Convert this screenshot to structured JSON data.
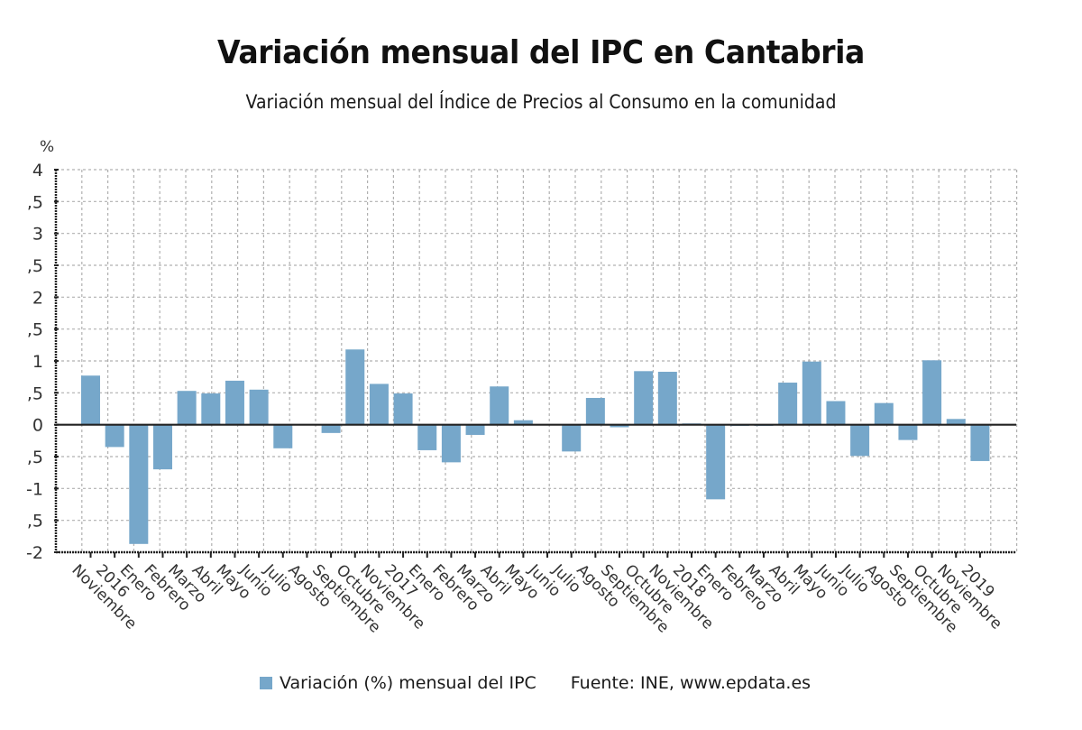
{
  "header": {
    "title": "Variación mensual del IPC en Cantabria",
    "subtitle": "Variación mensual del Índice de Precios al Consumo en la comunidad"
  },
  "legend": {
    "series_label": "Variación (%) mensual del IPC",
    "source": "Fuente: INE, www.epdata.es",
    "swatch_color": "#76a7ca"
  },
  "colors": {
    "bar": "#76a7ca",
    "zero_line": "#222222",
    "grid": "#b0b0b0",
    "axis": "#222222"
  },
  "chart_data": {
    "type": "bar",
    "title": "Variación mensual del IPC en Cantabria",
    "subtitle": "Variación mensual del Índice de Precios al Consumo en la comunidad",
    "xlabel": "",
    "ylabel": "%",
    "ylim": [
      -2,
      4
    ],
    "yticks": [
      4,
      3.5,
      3,
      2.5,
      2,
      1.5,
      1,
      0.5,
      0,
      -0.5,
      -1,
      -1.5,
      -2
    ],
    "ytick_labels": [
      "4",
      ",5",
      "3",
      ",5",
      "2",
      ",5",
      "1",
      ",5",
      "0",
      ",5",
      "-1",
      ",5",
      "-2"
    ],
    "grid": true,
    "legend_position": "bottom",
    "categories": [
      "Noviembre",
      "2016",
      "Enero",
      "Febrero",
      "Marzo",
      "Abril",
      "Mayo",
      "Junio",
      "Julio",
      "Agosto",
      "Septiembre",
      "Octubre",
      "Noviembre",
      "2017",
      "Enero",
      "Febrero",
      "Marzo",
      "Abril",
      "Mayo",
      "Junio",
      "Julio",
      "Agosto",
      "Septiembre",
      "Octubre",
      "Noviembre",
      "2018",
      "Enero",
      "Febrero",
      "Marzo",
      "Abril",
      "Mayo",
      "Junio",
      "Julio",
      "Agosto",
      "Septiembre",
      "Octubre",
      "Noviembre",
      "2019"
    ],
    "series": [
      {
        "name": "Variación (%) mensual del IPC",
        "values": [
          0.77,
          -0.35,
          -1.87,
          -0.7,
          0.53,
          0.49,
          0.69,
          0.55,
          -0.37,
          0.0,
          -0.13,
          1.18,
          0.64,
          0.49,
          -0.4,
          -0.59,
          -0.16,
          0.6,
          0.07,
          0.0,
          -0.42,
          0.42,
          -0.04,
          0.84,
          0.83,
          0.02,
          -1.17,
          -0.02,
          -0.02,
          0.66,
          0.99,
          0.37,
          -0.49,
          0.34,
          -0.24,
          1.01,
          0.09,
          -0.57
        ]
      }
    ]
  }
}
